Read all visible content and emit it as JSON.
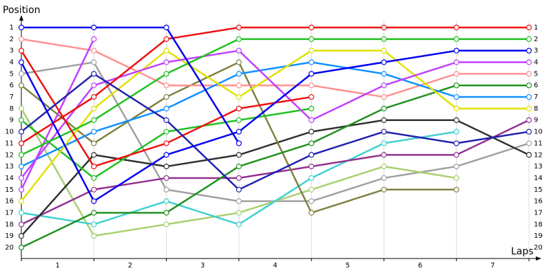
{
  "chart_data": {
    "type": "bump",
    "ylabel": "Position",
    "xlabel": "Laps",
    "x": [
      0,
      1,
      2,
      3,
      4,
      5,
      6,
      7
    ],
    "xlim": [
      0,
      7
    ],
    "xticks": [
      {
        "value": 0.5,
        "label": "1"
      },
      {
        "value": 1.5,
        "label": "2"
      },
      {
        "value": 2.5,
        "label": "3"
      },
      {
        "value": 3.5,
        "label": "4"
      },
      {
        "value": 4.5,
        "label": "5"
      },
      {
        "value": 5.5,
        "label": "6"
      },
      {
        "value": 6.5,
        "label": "7"
      }
    ],
    "ylim": [
      1,
      20
    ],
    "y_inverted": true,
    "yticks": [
      1,
      2,
      3,
      4,
      5,
      6,
      7,
      8,
      9,
      10,
      11,
      12,
      13,
      14,
      15,
      16,
      17,
      18,
      19,
      20
    ],
    "grid": true,
    "series": [
      {
        "color": "#a0a0a0",
        "values": [
          5,
          4,
          15,
          16,
          16,
          14,
          13,
          11
        ]
      },
      {
        "color": "#a8d070",
        "values": [
          8,
          19,
          18,
          17,
          15,
          13,
          14,
          null
        ]
      },
      {
        "color": "#40d0d0",
        "values": [
          17,
          18,
          16,
          18,
          14,
          11,
          10,
          null
        ]
      },
      {
        "color": "#903090",
        "values": [
          18,
          15,
          14,
          14,
          13,
          12,
          12,
          9
        ]
      },
      {
        "color": "#303030",
        "values": [
          19,
          12,
          13,
          12,
          10,
          9,
          9,
          12
        ]
      },
      {
        "color": "#808040",
        "values": [
          6,
          11,
          7,
          4,
          17,
          15,
          15,
          null
        ]
      },
      {
        "color": "#209020",
        "values": [
          20,
          17,
          17,
          13,
          11,
          8,
          6,
          6
        ]
      },
      {
        "color": "#20c020",
        "values": [
          9,
          14,
          10,
          9,
          8,
          null,
          null,
          null
        ]
      },
      {
        "color": "#ff9090",
        "values": [
          2,
          3,
          6,
          6,
          6,
          7,
          5,
          5
        ]
      },
      {
        "color": "#1090ff",
        "values": [
          13,
          10,
          8,
          5,
          4,
          5,
          7,
          7
        ]
      },
      {
        "color": "#e0e000",
        "values": [
          16,
          8,
          3,
          7,
          3,
          3,
          8,
          8
        ]
      },
      {
        "color": "#c040ff",
        "values": [
          15,
          2,
          null,
          null,
          null,
          null,
          null,
          null
        ]
      },
      {
        "color": "#c040ff",
        "values": [
          14,
          6,
          4,
          3,
          9,
          6,
          4,
          4
        ]
      },
      {
        "color": "#20c020",
        "values": [
          12,
          9,
          5,
          2,
          2,
          2,
          2,
          2
        ]
      },
      {
        "color": "#ee1010",
        "values": [
          3,
          13,
          11,
          8,
          7,
          null,
          null,
          null
        ]
      },
      {
        "color": "#ee1010",
        "values": [
          11,
          7,
          2,
          1,
          1,
          1,
          1,
          1
        ]
      },
      {
        "color": "#2020b0",
        "values": [
          10,
          5,
          9,
          15,
          12,
          10,
          11,
          10
        ]
      },
      {
        "color": "#0000f0",
        "values": [
          4,
          16,
          12,
          10,
          5,
          4,
          3,
          3
        ]
      },
      {
        "color": "#0000f0",
        "values": [
          1,
          1,
          1,
          11,
          null,
          null,
          null,
          null
        ]
      }
    ]
  }
}
